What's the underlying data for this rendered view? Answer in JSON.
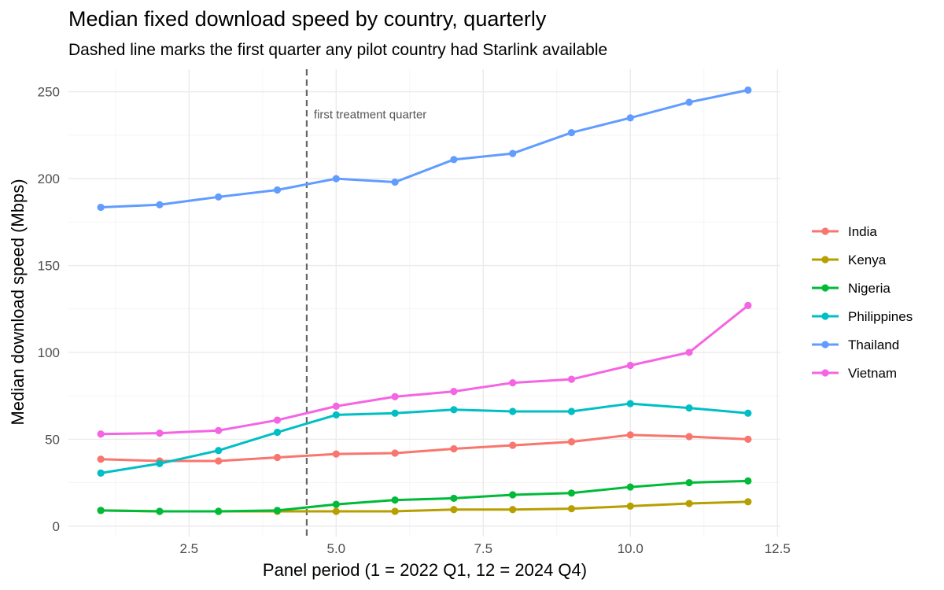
{
  "chart_data": {
    "type": "line",
    "title": "Median fixed download speed by country, quarterly",
    "subtitle": "Dashed line marks the first quarter any pilot country had Starlink available",
    "xlabel": "Panel period (1 = 2022 Q1, 12 = 2024 Q4)",
    "ylabel": "Median download speed (Mbps)",
    "xlim": [
      0.45,
      12.55
    ],
    "ylim": [
      -6,
      263
    ],
    "x_ticks": [
      2.5,
      5.0,
      7.5,
      10.0,
      12.5
    ],
    "x_tick_labels": [
      "2.5",
      "5.0",
      "7.5",
      "10.0",
      "12.5"
    ],
    "y_ticks": [
      0,
      50,
      100,
      150,
      200,
      250
    ],
    "y_tick_labels": [
      "0",
      "50",
      "100",
      "150",
      "200",
      "250"
    ],
    "grid": true,
    "legend_position": "right",
    "x": [
      1,
      2,
      3,
      4,
      5,
      6,
      7,
      8,
      9,
      10,
      11,
      12
    ],
    "series": [
      {
        "name": "India",
        "color": "#F8766D",
        "values": [
          38.5,
          37.5,
          37.5,
          39.5,
          41.5,
          42,
          44.5,
          46.5,
          48.5,
          52.5,
          51.5,
          50
        ]
      },
      {
        "name": "Kenya",
        "color": "#B79F00",
        "values": [
          9,
          8.5,
          8.5,
          8.5,
          8.5,
          8.5,
          9.5,
          9.5,
          10,
          11.5,
          13,
          14
        ]
      },
      {
        "name": "Nigeria",
        "color": "#00BA38",
        "values": [
          9,
          8.5,
          8.5,
          9,
          12.5,
          15,
          16,
          18,
          19,
          22.5,
          25,
          26
        ]
      },
      {
        "name": "Philippines",
        "color": "#00BFC4",
        "values": [
          30.5,
          36,
          43.5,
          54,
          64,
          65,
          67,
          66,
          66,
          70.5,
          68,
          65
        ]
      },
      {
        "name": "Thailand",
        "color": "#619CFF",
        "values": [
          183.5,
          185,
          189.5,
          193.5,
          200,
          198,
          211,
          214.5,
          226.5,
          235,
          244,
          251
        ]
      },
      {
        "name": "Vietnam",
        "color": "#F564E3",
        "values": [
          53,
          53.5,
          55,
          61,
          69,
          74.5,
          77.5,
          82.5,
          84.5,
          92.5,
          100,
          127
        ]
      }
    ],
    "annotations": [
      {
        "type": "vline",
        "x": 4.5,
        "style": "dashed",
        "color": "#666666",
        "label": "first treatment quarter",
        "label_y": 237
      }
    ]
  }
}
